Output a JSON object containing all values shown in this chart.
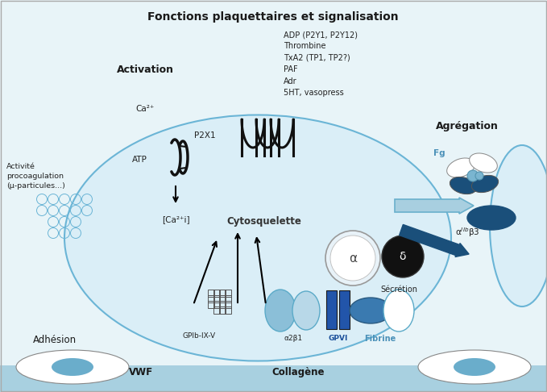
{
  "title": "Fonctions plaquettaires et signalisation",
  "bg_color": "#e8f4f8",
  "cell_facecolor": "#daeef7",
  "cell_edge_color": "#6bb5d6",
  "dark_blue": "#1a4f7a",
  "mid_blue": "#4a8fb5",
  "light_blue_arrow": "#8bbfd8",
  "bottom_bar": "#a8d0e0",
  "labels": {
    "activation": "Activation",
    "aggregation": "Agrégation",
    "adhesion": "Adhésion",
    "cytoskeleton": "Cytosquelette",
    "secretion": "Sécrétion",
    "fibrine": "Fibrine",
    "fg": "Fg",
    "vwf": "VWF",
    "collagene": "Collagène",
    "gpib": "GPIb-IX-V",
    "a2b1": "α2β1",
    "gpvi": "GPVI",
    "ca2plus": "Ca²⁺",
    "atp": "ATP",
    "p2x1": "P2X1",
    "ca2i": "[Ca²⁺i]",
    "agonists": "ADP (P2Y1, P2Y12)\nThrombine\nTxA2 (TP1, TP2?)\nPAF\nAdr\n5HT, vasopress",
    "activite": "Activité\nprocoagulation\n(µ-particules...)"
  }
}
